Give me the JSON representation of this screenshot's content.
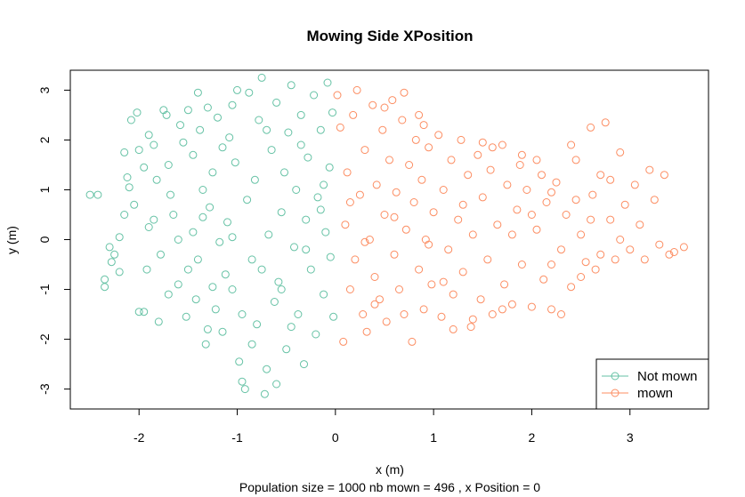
{
  "chart_data": {
    "type": "scatter",
    "title": "Mowing Side XPosition",
    "xlabel": "x (m)",
    "ylabel": "y (m)",
    "subtitle": "Population size = 1000 nb mown = 496 , x Position = 0",
    "xlim": [
      -2.7,
      3.8
    ],
    "ylim": [
      -3.4,
      3.4
    ],
    "x_ticks": [
      -2,
      -1,
      0,
      1,
      2,
      3
    ],
    "y_ticks": [
      -3,
      -2,
      -1,
      0,
      1,
      2,
      3
    ],
    "x_tick_labels": [
      "-2",
      "-1",
      "0",
      "1",
      "2",
      "3"
    ],
    "y_tick_labels": [
      "-3",
      "-2",
      "-1",
      "0",
      "1",
      "2",
      "3"
    ],
    "grid": false,
    "legend_position": "bottom-right",
    "series": [
      {
        "name": "Not mown",
        "color": "#66c2a5",
        "points": [
          [
            -2.5,
            0.9
          ],
          [
            -2.42,
            0.9
          ],
          [
            -2.35,
            -0.8
          ],
          [
            -2.35,
            -0.95
          ],
          [
            -2.3,
            -0.15
          ],
          [
            -2.25,
            -0.3
          ],
          [
            -2.28,
            -0.45
          ],
          [
            -2.2,
            -0.65
          ],
          [
            -2.2,
            0.05
          ],
          [
            -2.15,
            0.5
          ],
          [
            -2.12,
            1.25
          ],
          [
            -2.1,
            1.05
          ],
          [
            -2.15,
            1.75
          ],
          [
            -2.08,
            2.4
          ],
          [
            -2.02,
            2.55
          ],
          [
            -2.0,
            1.8
          ],
          [
            -2.0,
            -1.45
          ],
          [
            -1.95,
            -1.45
          ],
          [
            -1.92,
            -0.6
          ],
          [
            -1.9,
            0.25
          ],
          [
            -1.85,
            1.9
          ],
          [
            -1.82,
            1.2
          ],
          [
            -1.8,
            -1.65
          ],
          [
            -1.78,
            -0.3
          ],
          [
            -1.75,
            2.6
          ],
          [
            -1.72,
            2.5
          ],
          [
            -1.7,
            1.5
          ],
          [
            -1.68,
            0.9
          ],
          [
            -1.65,
            0.5
          ],
          [
            -1.6,
            -0.9
          ],
          [
            -1.58,
            2.3
          ],
          [
            -1.55,
            1.95
          ],
          [
            -1.52,
            -1.55
          ],
          [
            -1.5,
            2.6
          ],
          [
            -1.45,
            0.15
          ],
          [
            -1.45,
            1.7
          ],
          [
            -1.42,
            -1.2
          ],
          [
            -1.4,
            -0.4
          ],
          [
            -1.38,
            2.2
          ],
          [
            -1.35,
            1.0
          ],
          [
            -1.32,
            -2.1
          ],
          [
            -1.3,
            -1.8
          ],
          [
            -1.3,
            2.65
          ],
          [
            -1.28,
            0.65
          ],
          [
            -1.25,
            1.35
          ],
          [
            -1.22,
            -1.4
          ],
          [
            -1.2,
            2.45
          ],
          [
            -1.18,
            -0.05
          ],
          [
            -1.15,
            1.85
          ],
          [
            -1.12,
            -0.7
          ],
          [
            -1.1,
            0.35
          ],
          [
            -1.08,
            2.05
          ],
          [
            -1.05,
            -1.0
          ],
          [
            -1.02,
            1.55
          ],
          [
            -1.0,
            3.0
          ],
          [
            -0.98,
            -2.45
          ],
          [
            -0.95,
            -2.85
          ],
          [
            -0.92,
            -3.0
          ],
          [
            -0.9,
            0.8
          ],
          [
            -0.88,
            2.95
          ],
          [
            -0.85,
            -0.4
          ],
          [
            -0.82,
            1.2
          ],
          [
            -0.8,
            -1.7
          ],
          [
            -0.78,
            2.4
          ],
          [
            -0.75,
            3.25
          ],
          [
            -0.72,
            -3.1
          ],
          [
            -0.7,
            -2.6
          ],
          [
            -0.68,
            0.1
          ],
          [
            -0.65,
            1.8
          ],
          [
            -0.62,
            -1.25
          ],
          [
            -0.6,
            2.75
          ],
          [
            -0.58,
            -0.85
          ],
          [
            -0.55,
            0.55
          ],
          [
            -0.52,
            1.35
          ],
          [
            -0.5,
            -2.2
          ],
          [
            -0.48,
            2.15
          ],
          [
            -0.45,
            3.1
          ],
          [
            -0.42,
            -0.15
          ],
          [
            -0.4,
            1.0
          ],
          [
            -0.38,
            -1.5
          ],
          [
            -0.35,
            2.5
          ],
          [
            -0.32,
            -2.5
          ],
          [
            -0.3,
            0.4
          ],
          [
            -0.28,
            1.65
          ],
          [
            -0.25,
            -0.6
          ],
          [
            -0.22,
            2.9
          ],
          [
            -0.2,
            -1.9
          ],
          [
            -0.18,
            0.85
          ],
          [
            -0.15,
            2.2
          ],
          [
            -0.12,
            -1.1
          ],
          [
            -0.1,
            0.15
          ],
          [
            -0.08,
            3.15
          ],
          [
            -0.06,
            1.45
          ],
          [
            -0.05,
            -0.35
          ],
          [
            -0.03,
            2.55
          ],
          [
            -0.02,
            -1.55
          ],
          [
            -2.05,
            0.7
          ],
          [
            -1.95,
            1.45
          ],
          [
            -1.6,
            0.0
          ],
          [
            -1.5,
            -0.6
          ],
          [
            -1.25,
            -0.95
          ],
          [
            -1.15,
            -1.85
          ],
          [
            -0.95,
            -1.5
          ],
          [
            -0.85,
            -2.1
          ],
          [
            -0.6,
            -2.9
          ],
          [
            -0.45,
            -1.75
          ],
          [
            -1.85,
            0.4
          ],
          [
            -1.7,
            -1.1
          ],
          [
            -1.35,
            0.45
          ],
          [
            -1.05,
            0.05
          ],
          [
            -0.75,
            -0.6
          ],
          [
            -0.55,
            -1.0
          ],
          [
            -0.3,
            -0.2
          ],
          [
            -0.15,
            0.6
          ],
          [
            -1.9,
            2.1
          ],
          [
            -1.4,
            2.95
          ],
          [
            -1.05,
            2.7
          ],
          [
            -0.7,
            2.2
          ],
          [
            -0.35,
            1.9
          ],
          [
            -0.12,
            1.1
          ]
        ]
      },
      {
        "name": "mown",
        "color": "#fc8d62",
        "points": [
          [
            0.02,
            2.9
          ],
          [
            0.05,
            2.25
          ],
          [
            0.08,
            -2.05
          ],
          [
            0.1,
            0.3
          ],
          [
            0.12,
            1.35
          ],
          [
            0.15,
            -1.0
          ],
          [
            0.18,
            2.5
          ],
          [
            0.2,
            -0.4
          ],
          [
            0.22,
            3.0
          ],
          [
            0.25,
            0.9
          ],
          [
            0.28,
            -1.5
          ],
          [
            0.3,
            1.8
          ],
          [
            0.32,
            -1.85
          ],
          [
            0.35,
            0.0
          ],
          [
            0.38,
            2.7
          ],
          [
            0.4,
            -0.75
          ],
          [
            0.42,
            1.1
          ],
          [
            0.45,
            -1.2
          ],
          [
            0.48,
            2.2
          ],
          [
            0.5,
            0.5
          ],
          [
            0.52,
            -1.65
          ],
          [
            0.55,
            1.6
          ],
          [
            0.58,
            2.8
          ],
          [
            0.6,
            -0.3
          ],
          [
            0.62,
            0.95
          ],
          [
            0.65,
            -1.0
          ],
          [
            0.68,
            2.4
          ],
          [
            0.7,
            -1.5
          ],
          [
            0.72,
            0.2
          ],
          [
            0.75,
            1.5
          ],
          [
            0.78,
            -2.05
          ],
          [
            0.8,
            0.75
          ],
          [
            0.82,
            2.0
          ],
          [
            0.85,
            -0.6
          ],
          [
            0.88,
            1.2
          ],
          [
            0.9,
            -1.4
          ],
          [
            0.92,
            0.0
          ],
          [
            0.95,
            1.85
          ],
          [
            0.98,
            -0.9
          ],
          [
            1.0,
            0.55
          ],
          [
            1.05,
            2.1
          ],
          [
            1.08,
            -1.55
          ],
          [
            1.1,
            1.0
          ],
          [
            1.15,
            -0.2
          ],
          [
            1.18,
            1.6
          ],
          [
            1.2,
            -1.1
          ],
          [
            1.25,
            0.4
          ],
          [
            1.28,
            2.0
          ],
          [
            1.3,
            -0.65
          ],
          [
            1.35,
            1.3
          ],
          [
            1.38,
            -1.75
          ],
          [
            1.4,
            0.1
          ],
          [
            1.45,
            1.7
          ],
          [
            1.48,
            -1.2
          ],
          [
            1.5,
            0.85
          ],
          [
            1.55,
            -0.4
          ],
          [
            1.58,
            1.4
          ],
          [
            1.6,
            -1.5
          ],
          [
            1.65,
            0.3
          ],
          [
            1.7,
            1.9
          ],
          [
            1.72,
            -0.9
          ],
          [
            1.75,
            1.1
          ],
          [
            1.8,
            -1.3
          ],
          [
            1.85,
            0.6
          ],
          [
            1.88,
            1.5
          ],
          [
            1.9,
            -0.5
          ],
          [
            1.95,
            1.0
          ],
          [
            2.0,
            -1.35
          ],
          [
            2.05,
            0.2
          ],
          [
            2.1,
            1.3
          ],
          [
            2.12,
            -0.8
          ],
          [
            2.15,
            0.75
          ],
          [
            2.2,
            -1.4
          ],
          [
            2.25,
            1.15
          ],
          [
            2.3,
            -0.2
          ],
          [
            2.35,
            0.5
          ],
          [
            2.4,
            -0.95
          ],
          [
            2.45,
            1.6
          ],
          [
            2.5,
            0.1
          ],
          [
            2.55,
            -0.45
          ],
          [
            2.6,
            2.25
          ],
          [
            2.62,
            0.9
          ],
          [
            2.65,
            -0.6
          ],
          [
            2.7,
            1.3
          ],
          [
            2.75,
            2.35
          ],
          [
            2.8,
            0.4
          ],
          [
            2.85,
            -0.4
          ],
          [
            2.9,
            1.75
          ],
          [
            2.95,
            0.7
          ],
          [
            3.0,
            -0.2
          ],
          [
            3.05,
            1.1
          ],
          [
            3.1,
            0.3
          ],
          [
            3.15,
            -0.4
          ],
          [
            3.2,
            1.4
          ],
          [
            3.25,
            0.8
          ],
          [
            3.3,
            -0.1
          ],
          [
            3.35,
            1.3
          ],
          [
            3.4,
            -0.3
          ],
          [
            3.45,
            -0.25
          ],
          [
            3.55,
            -0.15
          ],
          [
            0.3,
            -0.05
          ],
          [
            0.5,
            2.65
          ],
          [
            0.7,
            2.95
          ],
          [
            0.85,
            2.5
          ],
          [
            0.9,
            2.3
          ],
          [
            1.2,
            -1.8
          ],
          [
            1.4,
            -1.6
          ],
          [
            1.6,
            1.85
          ],
          [
            1.7,
            -1.4
          ],
          [
            1.9,
            1.7
          ],
          [
            2.05,
            1.6
          ],
          [
            2.2,
            0.95
          ],
          [
            2.3,
            -1.5
          ],
          [
            2.4,
            1.9
          ],
          [
            2.5,
            -0.75
          ],
          [
            2.6,
            0.4
          ],
          [
            2.7,
            -0.3
          ],
          [
            2.8,
            1.2
          ],
          [
            0.15,
            0.75
          ],
          [
            0.4,
            -1.3
          ],
          [
            0.6,
            0.45
          ],
          [
            0.95,
            -0.1
          ],
          [
            1.1,
            -0.85
          ],
          [
            1.3,
            0.7
          ],
          [
            1.5,
            1.95
          ],
          [
            1.8,
            0.1
          ],
          [
            2.0,
            0.5
          ],
          [
            2.2,
            -0.5
          ],
          [
            2.45,
            0.8
          ],
          [
            2.9,
            0.0
          ]
        ]
      }
    ]
  }
}
